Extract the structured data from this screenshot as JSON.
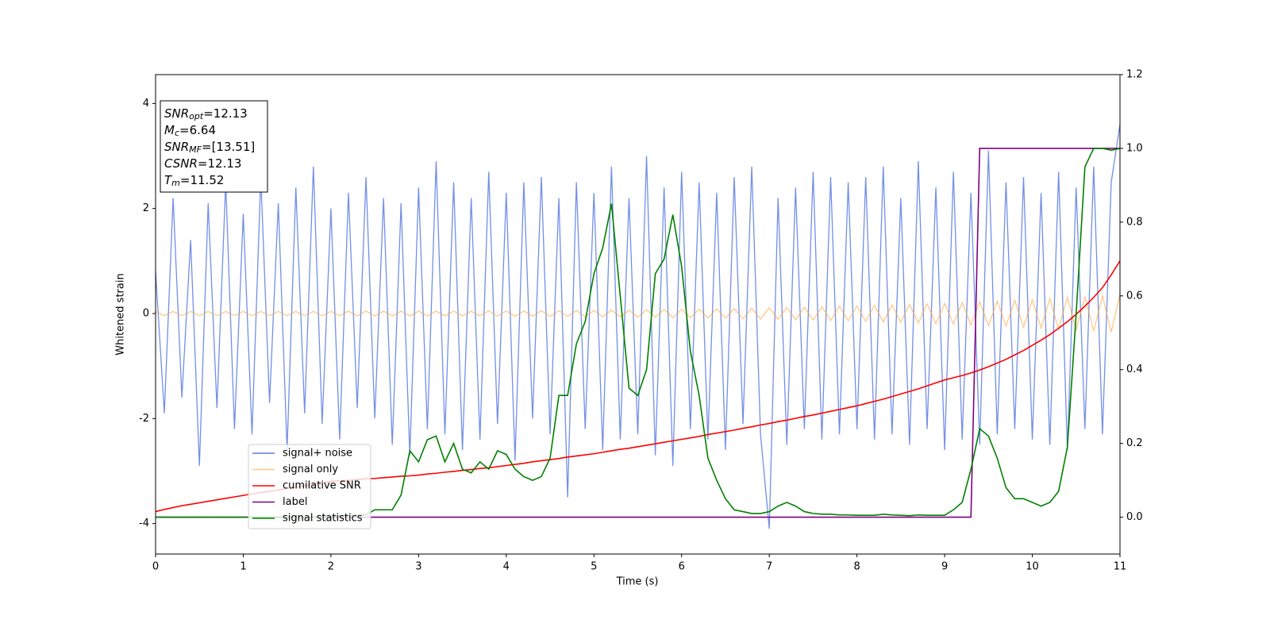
{
  "chart_data": {
    "type": "line",
    "xlabel": "Time (s)",
    "ylabel": "Whitened strain",
    "xlim": [
      0,
      11
    ],
    "ylim": [
      -4.58,
      4.55
    ],
    "y2lim": [
      -0.1,
      1.2
    ],
    "xticks": [
      0,
      1,
      2,
      3,
      4,
      5,
      6,
      7,
      8,
      9,
      10,
      11
    ],
    "yticks": [
      -4,
      -2,
      0,
      2,
      4
    ],
    "y2ticks": [
      {
        "value": 0,
        "label": "0.0"
      },
      0.2,
      0.4,
      0.6,
      0.8,
      {
        "value": 1,
        "label": "1.0"
      },
      1.2
    ],
    "legend": "lower left",
    "annotations": [
      {
        "base": "SNR",
        "sub": "opt",
        "rest": "=12.13"
      },
      {
        "base": "M",
        "sub": "c",
        "rest": "=6.64"
      },
      {
        "base": "SNR",
        "sub": "MF",
        "rest": "=[13.51]"
      },
      {
        "base": "CSNR",
        "rest": "=12.13"
      },
      {
        "base": "T",
        "sub": "m",
        "rest": "=11.52"
      }
    ],
    "x": [
      0,
      0.1,
      0.2,
      0.3,
      0.4,
      0.5,
      0.6,
      0.7,
      0.8,
      0.9,
      1,
      1.1,
      1.2,
      1.3,
      1.4,
      1.5,
      1.6,
      1.7,
      1.8,
      1.9,
      2,
      2.1,
      2.2,
      2.3,
      2.4,
      2.5,
      2.6,
      2.7,
      2.8,
      2.9,
      3,
      3.1,
      3.2,
      3.3,
      3.4,
      3.5,
      3.6,
      3.7,
      3.8,
      3.9,
      4,
      4.1,
      4.2,
      4.3,
      4.4,
      4.5,
      4.6,
      4.7,
      4.8,
      4.9,
      5,
      5.1,
      5.2,
      5.3,
      5.4,
      5.5,
      5.6,
      5.7,
      5.8,
      5.9,
      6,
      6.1,
      6.2,
      6.3,
      6.4,
      6.5,
      6.6,
      6.7,
      6.8,
      6.9,
      7,
      7.1,
      7.2,
      7.3,
      7.4,
      7.5,
      7.6,
      7.7,
      7.8,
      7.9,
      8,
      8.1,
      8.2,
      8.3,
      8.4,
      8.5,
      8.6,
      8.7,
      8.8,
      8.9,
      9,
      9.1,
      9.2,
      9.3,
      9.4,
      9.5,
      9.6,
      9.7,
      9.8,
      9.9,
      10,
      10.1,
      10.2,
      10.3,
      10.4,
      10.5,
      10.6,
      10.7,
      10.8,
      10.9,
      11
    ],
    "series": [
      {
        "name": "signal+ noise",
        "color": "#5b7be3",
        "values": [
          0.8,
          -1.9,
          2.2,
          -1.6,
          1.4,
          -2.9,
          2.1,
          -1.8,
          2.5,
          -2.2,
          1.9,
          -2.3,
          2.6,
          -1.7,
          2.1,
          -2.6,
          2.4,
          -1.9,
          2.8,
          -2.1,
          2.0,
          -2.4,
          2.3,
          -1.8,
          2.6,
          -2.0,
          2.2,
          -2.5,
          2.1,
          -2.7,
          2.4,
          -2.2,
          2.9,
          -2.3,
          2.5,
          -2.6,
          2.2,
          -2.4,
          2.7,
          -2.1,
          2.3,
          -2.8,
          2.5,
          -2.0,
          2.6,
          -2.3,
          2.2,
          -3.5,
          2.5,
          -2.2,
          2.3,
          -2.6,
          2.8,
          -2.4,
          2.2,
          -2.3,
          3.0,
          -2.7,
          2.4,
          -2.9,
          2.7,
          -2.2,
          2.5,
          -2.4,
          2.3,
          -2.6,
          2.6,
          -2.1,
          2.8,
          -2.3,
          -4.1,
          2.2,
          -2.5,
          2.4,
          -2.2,
          2.7,
          -2.4,
          2.6,
          -2.3,
          2.5,
          -2.2,
          2.6,
          -2.4,
          2.8,
          -2.3,
          2.2,
          -2.5,
          2.9,
          -2.2,
          2.4,
          -2.6,
          2.7,
          -2.4,
          2.3,
          -2.5,
          3.1,
          -2.3,
          2.5,
          -2.2,
          2.6,
          -2.4,
          2.3,
          -2.5,
          2.7,
          -2.6,
          2.4,
          -2.2,
          2.8,
          -2.3,
          2.5,
          3.6
        ]
      },
      {
        "name": "signal only",
        "color": "#ffa53a",
        "values": [
          0.04,
          -0.04,
          0.04,
          -0.04,
          0.04,
          -0.04,
          0.04,
          -0.04,
          0.04,
          -0.04,
          0.04,
          -0.04,
          0.04,
          -0.04,
          0.04,
          -0.04,
          0.04,
          -0.04,
          0.04,
          -0.04,
          0.04,
          -0.04,
          0.045,
          -0.045,
          0.045,
          -0.045,
          0.045,
          -0.045,
          0.045,
          -0.045,
          0.045,
          -0.045,
          0.045,
          -0.045,
          0.045,
          -0.045,
          0.045,
          -0.045,
          0.05,
          -0.05,
          0.05,
          -0.05,
          0.05,
          -0.05,
          0.055,
          -0.055,
          0.055,
          -0.055,
          0.06,
          -0.06,
          0.06,
          -0.06,
          0.065,
          -0.065,
          0.065,
          -0.07,
          0.07,
          -0.07,
          0.075,
          -0.075,
          0.08,
          -0.08,
          0.085,
          -0.085,
          0.09,
          -0.09,
          0.095,
          -0.1,
          0.1,
          -0.105,
          0.11,
          -0.11,
          0.115,
          -0.12,
          0.12,
          -0.125,
          0.13,
          -0.135,
          0.14,
          -0.14,
          0.145,
          -0.15,
          0.155,
          -0.16,
          0.165,
          -0.17,
          0.175,
          -0.18,
          0.185,
          -0.19,
          0.195,
          -0.2,
          0.21,
          -0.215,
          0.22,
          -0.23,
          0.235,
          -0.24,
          0.25,
          -0.26,
          0.265,
          -0.275,
          0.285,
          -0.295,
          0.305,
          -0.315,
          0.325,
          -0.335,
          0.345,
          -0.355,
          0.365
        ]
      },
      {
        "name": "cumilative SNR",
        "color": "#ff0000",
        "axis": "y2",
        "values": [
          0.015,
          0.021,
          0.026,
          0.031,
          0.035,
          0.039,
          0.043,
          0.047,
          0.051,
          0.055,
          0.059,
          0.063,
          0.067,
          0.07,
          0.074,
          0.078,
          0.082,
          0.085,
          0.089,
          0.093,
          0.097,
          0.099,
          0.1,
          0.102,
          0.104,
          0.105,
          0.107,
          0.109,
          0.111,
          0.112,
          0.114,
          0.117,
          0.119,
          0.122,
          0.124,
          0.127,
          0.129,
          0.132,
          0.134,
          0.137,
          0.14,
          0.143,
          0.146,
          0.15,
          0.153,
          0.156,
          0.159,
          0.163,
          0.166,
          0.169,
          0.172,
          0.176,
          0.18,
          0.184,
          0.187,
          0.191,
          0.195,
          0.199,
          0.203,
          0.207,
          0.211,
          0.215,
          0.219,
          0.224,
          0.228,
          0.232,
          0.236,
          0.241,
          0.245,
          0.25,
          0.254,
          0.259,
          0.263,
          0.268,
          0.273,
          0.277,
          0.282,
          0.287,
          0.292,
          0.297,
          0.302,
          0.308,
          0.314,
          0.32,
          0.327,
          0.334,
          0.341,
          0.348,
          0.356,
          0.364,
          0.372,
          0.378,
          0.384,
          0.391,
          0.399,
          0.408,
          0.418,
          0.428,
          0.44,
          0.452,
          0.466,
          0.48,
          0.495,
          0.512,
          0.53,
          0.55,
          0.572,
          0.596,
          0.622,
          0.657,
          0.695
        ]
      },
      {
        "name": "label",
        "color": "#800080",
        "axis": "y2",
        "values": [
          0,
          0,
          0,
          0,
          0,
          0,
          0,
          0,
          0,
          0,
          0,
          0,
          0,
          0,
          0,
          0,
          0,
          0,
          0,
          0,
          0,
          0,
          0,
          0,
          0,
          0,
          0,
          0,
          0,
          0,
          0,
          0,
          0,
          0,
          0,
          0,
          0,
          0,
          0,
          0,
          0,
          0,
          0,
          0,
          0,
          0,
          0,
          0,
          0,
          0,
          0,
          0,
          0,
          0,
          0,
          0,
          0,
          0,
          0,
          0,
          0,
          0,
          0,
          0,
          0,
          0,
          0,
          0,
          0,
          0,
          0,
          0,
          0,
          0,
          0,
          0,
          0,
          0,
          0,
          0,
          0,
          0,
          0,
          0,
          0,
          0,
          0,
          0,
          0,
          0,
          0,
          0,
          0,
          0,
          1,
          1,
          1,
          1,
          1,
          1,
          1,
          1,
          1,
          1,
          1,
          1,
          1,
          1,
          1,
          1,
          1
        ]
      },
      {
        "name": "signal statistics",
        "color": "#008000",
        "axis": "y2",
        "values": [
          0,
          0,
          0,
          0,
          0,
          0,
          0,
          0,
          0,
          0,
          0,
          0,
          0,
          0,
          0,
          0,
          0,
          0,
          0,
          0,
          0.002,
          0.004,
          0.005,
          0.005,
          0.006,
          0.02,
          0.02,
          0.02,
          0.06,
          0.18,
          0.15,
          0.21,
          0.22,
          0.15,
          0.2,
          0.13,
          0.12,
          0.15,
          0.13,
          0.18,
          0.17,
          0.13,
          0.11,
          0.1,
          0.11,
          0.16,
          0.33,
          0.33,
          0.47,
          0.53,
          0.66,
          0.73,
          0.85,
          0.6,
          0.35,
          0.33,
          0.4,
          0.66,
          0.7,
          0.82,
          0.68,
          0.45,
          0.33,
          0.16,
          0.1,
          0.05,
          0.02,
          0.015,
          0.01,
          0.01,
          0.015,
          0.03,
          0.04,
          0.03,
          0.015,
          0.01,
          0.008,
          0.008,
          0.006,
          0.006,
          0.005,
          0.005,
          0.005,
          0.008,
          0.006,
          0.005,
          0.004,
          0.006,
          0.005,
          0.005,
          0.005,
          0.02,
          0.04,
          0.13,
          0.24,
          0.22,
          0.16,
          0.08,
          0.05,
          0.05,
          0.04,
          0.03,
          0.04,
          0.07,
          0.19,
          0.55,
          0.95,
          1.0,
          1.0,
          0.995,
          1.0
        ]
      }
    ]
  }
}
